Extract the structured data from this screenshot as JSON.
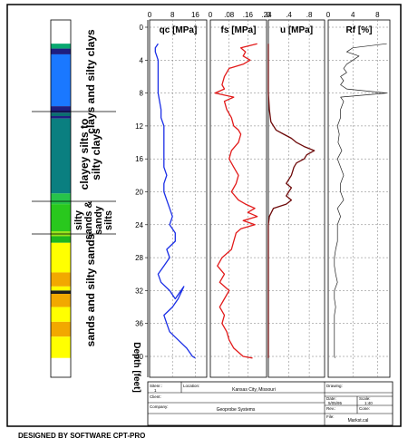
{
  "footer_text": "DESIGNED BY SOFTWARE CPT-PRO",
  "depth_label": "Depth [feet]",
  "soil_labels": [
    "clays and silty clays",
    "clayey silts to silty clays",
    "silty sands & sandy silts",
    "sands and silty sands"
  ],
  "title_block": {
    "cell1_label": "Sitenr.:",
    "cell1_value": "1",
    "cell2_label": "Location:",
    "cell2_value": "Kansas City, Missouri",
    "cell3_label": "Client:",
    "company_label": "Company:",
    "company_value": "Geoprobe Systems",
    "dwg_label": "Drawing:",
    "date_label": "Date:",
    "date_value": "5/05/95",
    "scale_label": "Scale:",
    "scale_value": "1:40",
    "rev_label": "Rev.:",
    "cone_label": "Cone:",
    "file_label": "File:",
    "file_value": "Markst.cal"
  },
  "chart_data": [
    {
      "type": "line",
      "title": "qc [MPa]",
      "xlim": [
        0,
        20
      ],
      "xticks": [
        "0",
        "8",
        "16"
      ],
      "ylim": [
        0,
        41
      ],
      "yticks": [
        "0",
        "4",
        "8",
        "12",
        "16",
        "20",
        "24",
        "28",
        "32",
        "36",
        "40"
      ],
      "ylabel": "Depth [feet]",
      "color": "#1a2ee6",
      "points": [
        [
          3,
          2
        ],
        [
          2,
          2.5
        ],
        [
          2,
          3
        ],
        [
          2.5,
          3.5
        ],
        [
          3,
          4
        ],
        [
          3,
          5
        ],
        [
          3,
          6
        ],
        [
          3,
          7
        ],
        [
          3,
          8
        ],
        [
          3.5,
          9
        ],
        [
          4,
          10
        ],
        [
          4,
          11
        ],
        [
          5,
          12
        ],
        [
          5,
          13
        ],
        [
          5,
          14
        ],
        [
          5,
          15
        ],
        [
          5,
          16
        ],
        [
          5,
          17
        ],
        [
          6,
          18
        ],
        [
          5,
          19
        ],
        [
          5,
          20
        ],
        [
          6,
          21
        ],
        [
          7,
          22
        ],
        [
          8,
          23
        ],
        [
          7,
          24
        ],
        [
          9,
          25
        ],
        [
          9,
          26
        ],
        [
          6,
          27
        ],
        [
          7,
          28
        ],
        [
          5,
          29
        ],
        [
          3,
          30
        ],
        [
          4,
          31
        ],
        [
          7,
          32
        ],
        [
          9,
          33
        ],
        [
          12,
          31.5
        ],
        [
          10,
          33
        ],
        [
          8,
          34
        ],
        [
          5,
          35
        ],
        [
          6,
          36
        ],
        [
          7,
          37
        ],
        [
          10,
          38
        ],
        [
          13,
          39
        ],
        [
          15,
          40
        ],
        [
          16,
          40.2
        ]
      ]
    },
    {
      "type": "line",
      "title": "fs [MPa]",
      "xlim": [
        0,
        0.24
      ],
      "xticks": [
        "0",
        ".08",
        ".16",
        ".24"
      ],
      "ylim": [
        0,
        41
      ],
      "color": "#e21a1a",
      "points": [
        [
          0.2,
          2
        ],
        [
          0.13,
          2.5
        ],
        [
          0.15,
          3
        ],
        [
          0.14,
          3.5
        ],
        [
          0.17,
          4
        ],
        [
          0.14,
          4.5
        ],
        [
          0.08,
          5
        ],
        [
          0.06,
          6
        ],
        [
          0.05,
          7
        ],
        [
          0.06,
          7.5
        ],
        [
          0.02,
          8
        ],
        [
          0.1,
          8.5
        ],
        [
          0.06,
          9
        ],
        [
          0.07,
          10
        ],
        [
          0.09,
          11
        ],
        [
          0.1,
          12
        ],
        [
          0.12,
          12.5
        ],
        [
          0.13,
          13
        ],
        [
          0.12,
          14
        ],
        [
          0.09,
          15
        ],
        [
          0.08,
          16
        ],
        [
          0.1,
          17
        ],
        [
          0.12,
          18
        ],
        [
          0.11,
          19
        ],
        [
          0.09,
          20
        ],
        [
          0.12,
          21
        ],
        [
          0.15,
          21.5
        ],
        [
          0.19,
          22
        ],
        [
          0.16,
          22.5
        ],
        [
          0.2,
          23
        ],
        [
          0.14,
          23.5
        ],
        [
          0.19,
          24
        ],
        [
          0.13,
          24.5
        ],
        [
          0.11,
          25
        ],
        [
          0.1,
          26
        ],
        [
          0.09,
          27
        ],
        [
          0.05,
          28
        ],
        [
          0.03,
          29
        ],
        [
          0.06,
          30
        ],
        [
          0.04,
          31
        ],
        [
          0.08,
          32
        ],
        [
          0.06,
          33
        ],
        [
          0.04,
          34
        ],
        [
          0.06,
          35
        ],
        [
          0.05,
          36
        ],
        [
          0.07,
          37
        ],
        [
          0.08,
          38
        ],
        [
          0.1,
          39
        ],
        [
          0.14,
          40
        ],
        [
          0.18,
          40.2
        ]
      ]
    },
    {
      "type": "line",
      "title": "u [MPa]",
      "xlim": [
        0,
        1.1
      ],
      "xticks": [
        "0",
        ".4",
        ".8"
      ],
      "ylim": [
        0,
        41
      ],
      "color": "#6e0a0a",
      "points": [
        [
          0,
          2
        ],
        [
          0,
          8
        ],
        [
          0.02,
          10
        ],
        [
          0.05,
          11.5
        ],
        [
          0.15,
          12.5
        ],
        [
          0.3,
          13
        ],
        [
          0.45,
          13.5
        ],
        [
          0.55,
          14
        ],
        [
          0.7,
          14.5
        ],
        [
          0.9,
          15
        ],
        [
          0.75,
          15.5
        ],
        [
          0.7,
          16
        ],
        [
          0.55,
          16.5
        ],
        [
          0.5,
          17
        ],
        [
          0.45,
          18
        ],
        [
          0.4,
          18.5
        ],
        [
          0.35,
          19
        ],
        [
          0.45,
          19.5
        ],
        [
          0.4,
          20
        ],
        [
          0.35,
          20.5
        ],
        [
          0.45,
          21
        ],
        [
          0.35,
          21.5
        ],
        [
          0.1,
          22
        ],
        [
          0.02,
          23
        ],
        [
          0,
          24
        ],
        [
          0,
          32
        ],
        [
          0,
          40
        ],
        [
          0,
          40.2
        ]
      ]
    },
    {
      "type": "line",
      "title": "Rf [%]",
      "xlim": [
        0,
        10
      ],
      "xticks": [
        "0",
        "4",
        "8"
      ],
      "ylim": [
        0,
        41
      ],
      "color": "#222222",
      "points": [
        [
          9.5,
          2
        ],
        [
          4,
          2.5
        ],
        [
          3,
          3
        ],
        [
          5,
          3.5
        ],
        [
          4,
          4
        ],
        [
          3,
          4.5
        ],
        [
          2.5,
          5
        ],
        [
          3,
          5.5
        ],
        [
          2,
          6
        ],
        [
          2.5,
          6.5
        ],
        [
          2,
          7
        ],
        [
          3,
          7.5
        ],
        [
          9.5,
          8
        ],
        [
          2,
          8.5
        ],
        [
          2.5,
          9
        ],
        [
          2,
          10
        ],
        [
          2,
          11
        ],
        [
          1.5,
          12
        ],
        [
          1.8,
          13
        ],
        [
          1.6,
          14
        ],
        [
          2.2,
          15
        ],
        [
          1.5,
          16
        ],
        [
          2,
          17
        ],
        [
          2.5,
          18
        ],
        [
          2,
          19
        ],
        [
          2,
          20
        ],
        [
          2.5,
          21
        ],
        [
          1.5,
          22
        ],
        [
          2,
          23
        ],
        [
          1.5,
          24
        ],
        [
          1.5,
          25
        ],
        [
          1.5,
          26
        ],
        [
          1.2,
          27
        ],
        [
          1,
          28
        ],
        [
          1,
          29
        ],
        [
          1.2,
          30
        ],
        [
          1.5,
          31
        ],
        [
          1,
          32
        ],
        [
          1,
          33
        ],
        [
          1.2,
          34
        ],
        [
          1,
          35
        ],
        [
          1,
          36
        ],
        [
          1,
          37
        ],
        [
          1,
          38
        ],
        [
          1,
          39
        ],
        [
          1,
          40
        ],
        [
          1.1,
          40.2
        ]
      ]
    }
  ],
  "soil_column": [
    {
      "from": 0,
      "to": 2.0,
      "color": "#ffffff"
    },
    {
      "from": 2.0,
      "to": 2.6,
      "color": "#08a870"
    },
    {
      "from": 2.6,
      "to": 3.3,
      "color": "#1e1e80"
    },
    {
      "from": 3.3,
      "to": 9.6,
      "color": "#1a78ff"
    },
    {
      "from": 9.6,
      "to": 10.4,
      "color": "#1e1e80"
    },
    {
      "from": 10.4,
      "to": 10.8,
      "color": "#0a6f6f"
    },
    {
      "from": 10.8,
      "to": 11.1,
      "color": "#1e1e80"
    },
    {
      "from": 11.1,
      "to": 20.2,
      "color": "#0a7f80"
    },
    {
      "from": 20.2,
      "to": 21.5,
      "color": "#27c34a"
    },
    {
      "from": 21.5,
      "to": 24.8,
      "color": "#29c81d"
    },
    {
      "from": 24.8,
      "to": 25.4,
      "color": "#96e21b"
    },
    {
      "from": 25.4,
      "to": 26.2,
      "color": "#1eb61e"
    },
    {
      "from": 26.2,
      "to": 29.8,
      "color": "#ffff00"
    },
    {
      "from": 29.8,
      "to": 31.5,
      "color": "#f2a800"
    },
    {
      "from": 31.5,
      "to": 32.0,
      "color": "#ffff00"
    },
    {
      "from": 32.0,
      "to": 32.4,
      "color": "#1e1e1e"
    },
    {
      "from": 32.4,
      "to": 34.0,
      "color": "#f2a800"
    },
    {
      "from": 34.0,
      "to": 35.8,
      "color": "#ffff00"
    },
    {
      "from": 35.8,
      "to": 37.6,
      "color": "#f2a800"
    },
    {
      "from": 37.6,
      "to": 40.2,
      "color": "#ffff00"
    },
    {
      "from": 40.2,
      "to": 43.0,
      "color": "#ffffff"
    }
  ]
}
